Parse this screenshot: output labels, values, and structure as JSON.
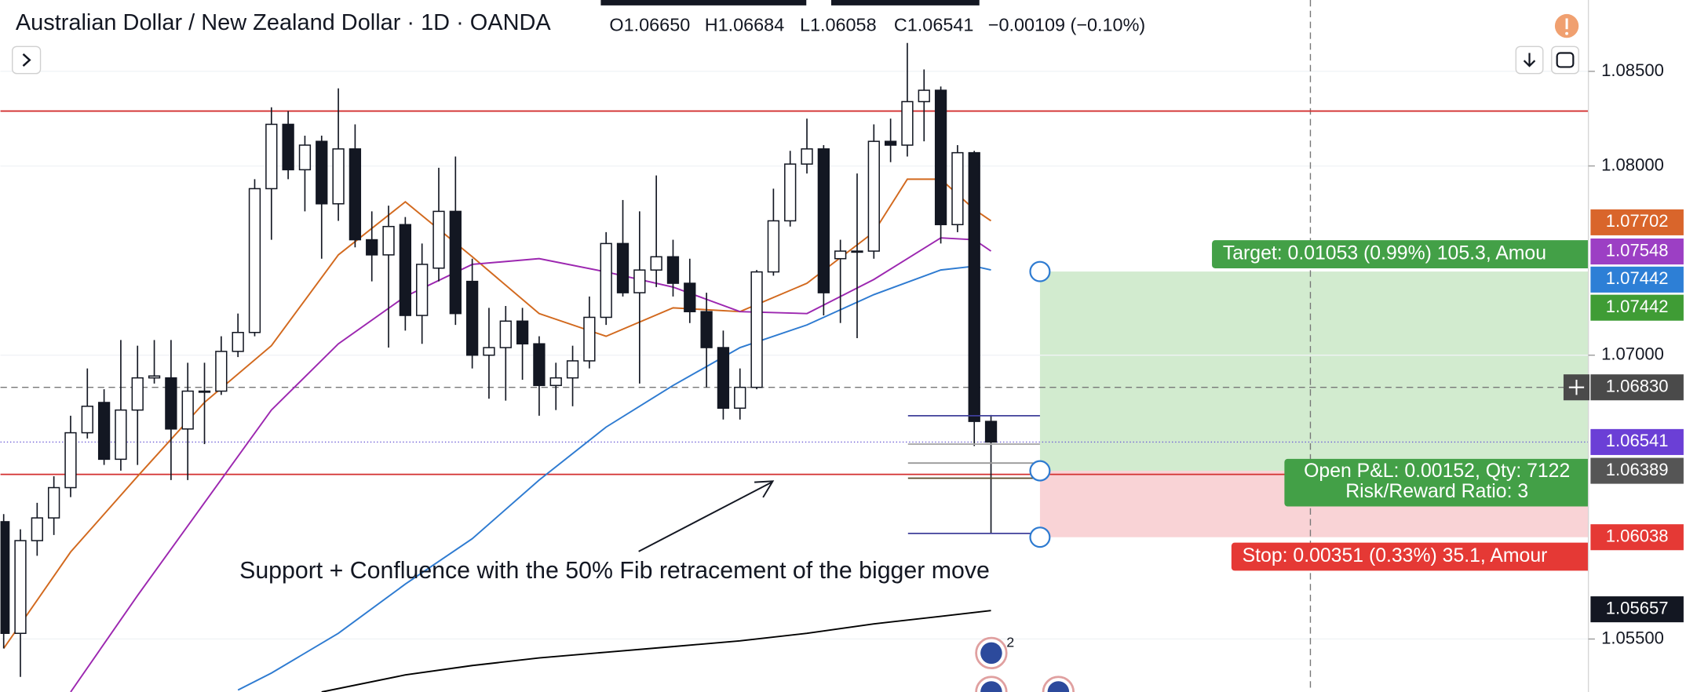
{
  "chart_data": {
    "type": "candlestick",
    "title": "Australian Dollar / New Zealand Dollar · 1D · OANDA",
    "header": [
      "O1.06650",
      "H1.06684",
      "L1.06058",
      "C1.06541",
      "−0.00109 (−0.10%)"
    ],
    "open": [
      1.0612,
      1.0553,
      1.0602,
      1.0614,
      1.063,
      1.0659,
      1.0675,
      1.0645,
      1.0671,
      1.0688,
      1.0688,
      1.0661,
      1.0681,
      1.0681,
      1.0702,
      1.0712,
      1.0788,
      1.0822,
      1.0798,
      1.0813,
      1.078,
      1.0809,
      1.0761,
      1.0753,
      1.0769,
      1.0721,
      1.0746,
      1.0776,
      1.0739,
      1.07,
      1.0704,
      1.0718,
      1.0706,
      1.0684,
      1.0688,
      1.0697,
      1.072,
      1.0759,
      1.0733,
      1.0745,
      1.0752,
      1.0738,
      1.0723,
      1.0704,
      1.0672,
      1.0683,
      1.0744,
      1.0771,
      1.0801,
      1.0809,
      1.0751,
      1.0755,
      1.0755,
      1.0813,
      1.0811,
      1.0834,
      1.084,
      1.0769,
      1.0807,
      1.0665
    ],
    "high": [
      1.0616,
      1.0608,
      1.0622,
      1.0636,
      1.0668,
      1.0693,
      1.0682,
      1.0708,
      1.0705,
      1.0708,
      1.0708,
      1.0696,
      1.0696,
      1.071,
      1.0722,
      1.0793,
      1.0831,
      1.0829,
      1.0816,
      1.0816,
      1.0841,
      1.0822,
      1.0776,
      1.0779,
      1.0773,
      1.0759,
      1.0799,
      1.0805,
      1.0751,
      1.0725,
      1.0726,
      1.0725,
      1.071,
      1.0696,
      1.0705,
      1.0731,
      1.0765,
      1.0782,
      1.0776,
      1.0795,
      1.0761,
      1.0751,
      1.0733,
      1.0713,
      1.0693,
      1.0745,
      1.0788,
      1.0808,
      1.0825,
      1.0811,
      1.0761,
      1.0796,
      1.0822,
      1.0825,
      1.0865,
      1.0851,
      1.0842,
      1.0811,
      1.0808,
      1.06684
    ],
    "low": [
      1.0545,
      1.053,
      1.0594,
      1.0605,
      1.0625,
      1.0656,
      1.0642,
      1.0639,
      1.0642,
      1.0685,
      1.0634,
      1.0634,
      1.0653,
      1.0679,
      1.0699,
      1.071,
      1.0761,
      1.0793,
      1.0776,
      1.0751,
      1.0771,
      1.0757,
      1.0739,
      1.0704,
      1.0713,
      1.0706,
      1.0739,
      1.0716,
      1.0693,
      1.0677,
      1.0676,
      1.0687,
      1.0668,
      1.0671,
      1.0673,
      1.0693,
      1.0716,
      1.0731,
      1.0685,
      1.0736,
      1.0731,
      1.0717,
      1.0683,
      1.0666,
      1.0666,
      1.0682,
      1.0742,
      1.0768,
      1.0796,
      1.0721,
      1.0717,
      1.0709,
      1.0751,
      1.0802,
      1.0805,
      1.0813,
      1.0759,
      1.0765,
      1.0652,
      1.06058
    ],
    "close": [
      1.0553,
      1.0602,
      1.0614,
      1.063,
      1.0659,
      1.0673,
      1.0645,
      1.0671,
      1.0688,
      1.0689,
      1.0661,
      1.0681,
      1.0681,
      1.0702,
      1.0712,
      1.0788,
      1.0822,
      1.0798,
      1.0811,
      1.078,
      1.0809,
      1.0761,
      1.0753,
      1.0768,
      1.0721,
      1.0748,
      1.0776,
      1.0722,
      1.07,
      1.0704,
      1.0718,
      1.0706,
      1.0684,
      1.0688,
      1.0697,
      1.072,
      1.0759,
      1.0733,
      1.0745,
      1.0752,
      1.0738,
      1.0723,
      1.0704,
      1.0672,
      1.0683,
      1.0744,
      1.0771,
      1.0801,
      1.0809,
      1.0733,
      1.0755,
      1.0755,
      1.0813,
      1.0811,
      1.0834,
      1.084,
      1.0769,
      1.0807,
      1.0665,
      1.06541
    ],
    "bull_color": "#ffffff",
    "bear_color": "#131722",
    "moving_averages": [
      {
        "color": "#d2691e",
        "x": [
          0,
          4,
          8,
          12,
          16,
          20,
          24,
          28,
          32,
          36,
          40,
          44,
          48,
          52,
          54,
          56,
          58,
          59
        ],
        "values": [
          1.0545,
          1.0596,
          1.0636,
          1.0675,
          1.0705,
          1.0753,
          1.0781,
          1.0752,
          1.0722,
          1.071,
          1.0725,
          1.0723,
          1.0738,
          1.0765,
          1.0793,
          1.0793,
          1.0777,
          1.0771
        ]
      },
      {
        "color": "#9c27b0",
        "x": [
          4,
          8,
          12,
          16,
          20,
          24,
          28,
          32,
          36,
          40,
          44,
          48,
          52,
          54,
          56,
          58,
          59
        ],
        "values": [
          1.0522,
          1.0573,
          1.0622,
          1.0671,
          1.0706,
          1.0731,
          1.0748,
          1.0751,
          1.0744,
          1.0736,
          1.0723,
          1.0722,
          1.074,
          1.0751,
          1.0762,
          1.0761,
          1.0755
        ]
      },
      {
        "color": "#2e7bd1",
        "x": [
          14,
          16,
          20,
          24,
          28,
          32,
          36,
          40,
          44,
          48,
          52,
          56,
          58,
          59
        ],
        "values": [
          1.0523,
          1.0532,
          1.0553,
          1.0579,
          1.0603,
          1.0634,
          1.0662,
          1.0684,
          1.0704,
          1.0716,
          1.0732,
          1.0745,
          1.0747,
          1.0745
        ]
      },
      {
        "color": "#000000",
        "x": [
          19,
          24,
          28,
          32,
          36,
          40,
          44,
          48,
          52,
          56,
          59
        ],
        "values": [
          1.0522,
          1.0531,
          1.0536,
          1.054,
          1.0543,
          1.0546,
          1.0549,
          1.0553,
          1.0558,
          1.0562,
          1.0565
        ]
      }
    ],
    "ylim": [
      1.0522,
      1.08877
    ],
    "yticks": [
      {
        "value": 1.085,
        "label": "1.08500"
      },
      {
        "value": 1.08,
        "label": "1.08000"
      },
      {
        "value": 1.07,
        "label": "1.07000"
      },
      {
        "value": 1.055,
        "label": "1.05500"
      }
    ],
    "levels": [
      {
        "value": 1.0829,
        "color": "#d32f2f"
      },
      {
        "value": 1.0637,
        "color": "#d32f2f"
      }
    ],
    "fib_lines": [
      {
        "value": 1.0668,
        "color": "#3f3f9a"
      },
      {
        "value": 1.0653,
        "color": "#aaaaaa"
      },
      {
        "value": 1.0643,
        "color": "#999999"
      },
      {
        "value": 1.0635,
        "color": "#5a4a2a"
      },
      {
        "value": 1.06058,
        "color": "#3f3f9a"
      }
    ],
    "crosshair": 1.0683,
    "price_labels": [
      {
        "value": 1.07702,
        "label": "1.07702",
        "color": "#d9652b"
      },
      {
        "value": 1.07548,
        "label": "1.07548",
        "color": "#9c3fc4"
      },
      {
        "value": 1.07442,
        "label": "1.07442",
        "color": "#2d7fd6"
      },
      {
        "value": 1.07442,
        "label": "1.07442",
        "color": "#3f9c35"
      },
      {
        "value": 1.0683,
        "label": "1.06830",
        "color": "#4a4a4a"
      },
      {
        "value": 1.06541,
        "label": "1.06541",
        "color": "#6b3fd6"
      },
      {
        "value": 1.06389,
        "label": "1.06389",
        "color": "#555555"
      },
      {
        "value": 1.06038,
        "label": "1.06038",
        "color": "#e53935"
      },
      {
        "value": 1.05657,
        "label": "1.05657",
        "color": "#131722"
      }
    ],
    "position": {
      "target": 1.07442,
      "entry": 1.06389,
      "stop": 1.06038,
      "target_label": "Target: 0.01053 (0.99%) 105.3, Amou",
      "pnl_label": "Open P&L: 0.00152, Qty: 7122",
      "rr_label": "Risk/Reward Ratio: 3",
      "stop_label": "Stop: 0.00351 (0.33%) 35.1, Amour"
    },
    "annotation": "Support + Confluence with the 50% Fib retracement of the bigger move",
    "events_badge": 2
  }
}
